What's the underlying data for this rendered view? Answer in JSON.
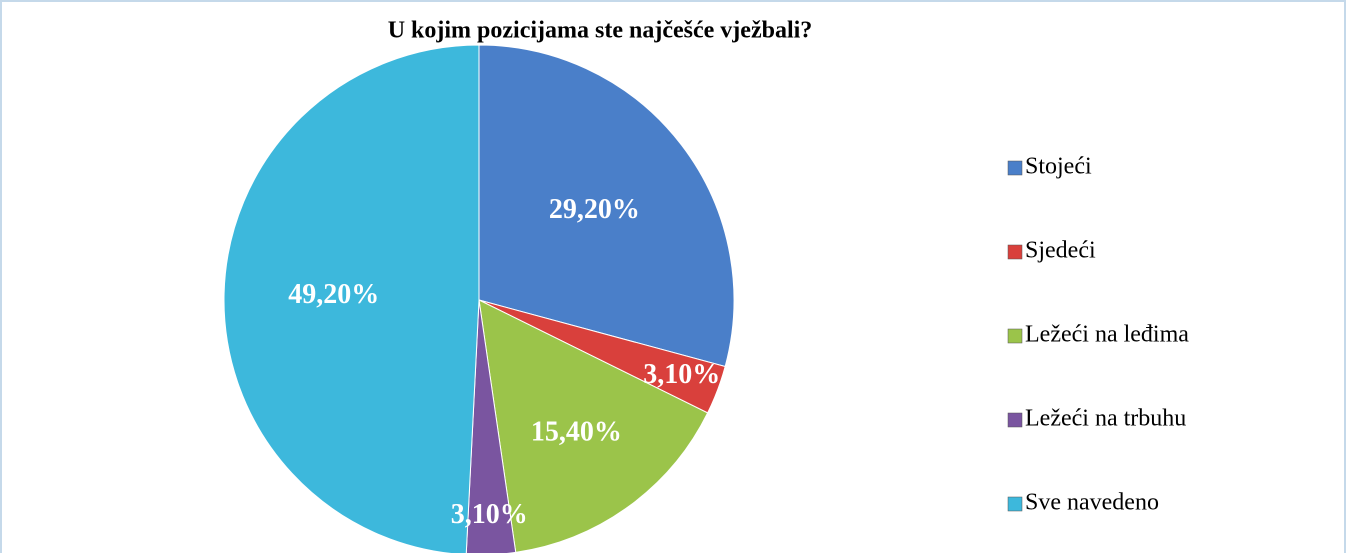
{
  "chart_data": {
    "type": "pie",
    "title": "U kojim pozicijama ste najčešće vježbali?",
    "categories": [
      "Stojeći",
      "Sjedeći",
      "Ležeći na leđima",
      "Ležeći na trbuhu",
      "Sve navedeno"
    ],
    "values": [
      29.2,
      3.1,
      15.4,
      3.1,
      49.2
    ],
    "value_labels": [
      "29,20%",
      "3,10%",
      "15,40%",
      "3,10%",
      "49,20%"
    ],
    "colors": [
      "#4a7fc9",
      "#d9403c",
      "#9bc44a",
      "#7a55a0",
      "#3db8dc"
    ],
    "legend": "right"
  }
}
